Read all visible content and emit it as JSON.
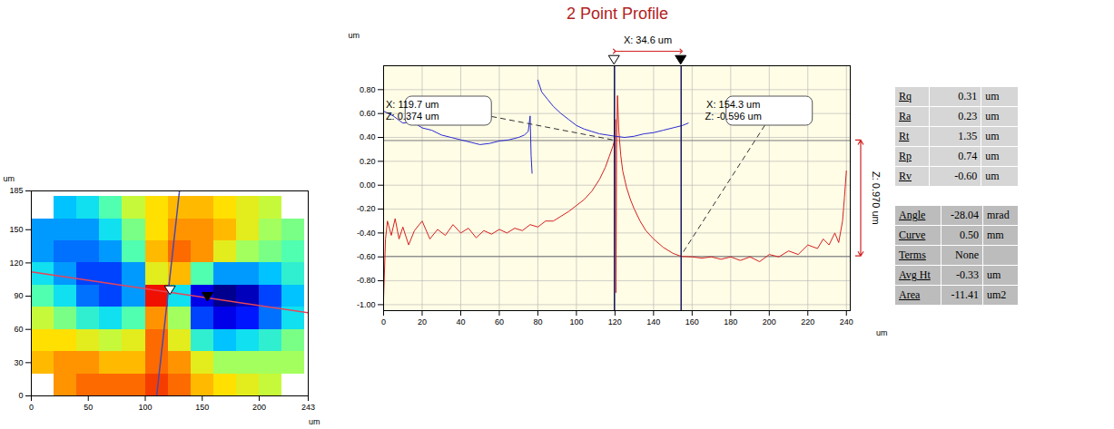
{
  "chart_data": [
    {
      "type": "heatmap",
      "x_label": "um",
      "y_label": "um",
      "xlim": [
        0,
        243
      ],
      "ylim": [
        0,
        185
      ],
      "xticks": [
        0,
        50,
        100,
        150,
        200,
        243
      ],
      "yticks": [
        0,
        30,
        60,
        90,
        120,
        150,
        185
      ],
      "grid": false,
      "color": "jet",
      "x": [
        10,
        30,
        50,
        70,
        90,
        110,
        130,
        150,
        170,
        190,
        210,
        230
      ],
      "y": [
        10,
        30,
        50,
        70,
        90,
        110,
        130,
        150,
        170
      ],
      "cells": [
        [
          null,
          0.25,
          0.3,
          0.3,
          0.3,
          0.35,
          0.3,
          0.2,
          0.15,
          0.1,
          0.05,
          null
        ],
        [
          0.2,
          0.25,
          0.25,
          0.2,
          0.2,
          0.3,
          0.25,
          0.1,
          0,
          0,
          0,
          0
        ],
        [
          0.15,
          0.15,
          0.1,
          0.05,
          0.1,
          0.3,
          0.1,
          -0.15,
          -0.25,
          -0.2,
          -0.15,
          -0.05
        ],
        [
          0.05,
          -0.05,
          -0.15,
          -0.2,
          -0.1,
          0.25,
          0,
          -0.4,
          -0.5,
          -0.45,
          -0.35,
          -0.2
        ],
        [
          -0.1,
          -0.2,
          -0.35,
          -0.4,
          -0.3,
          0.4,
          -0.2,
          -0.5,
          -0.6,
          -0.55,
          -0.4,
          -0.25
        ],
        [
          -0.2,
          -0.3,
          -0.4,
          -0.4,
          -0.3,
          0.1,
          0.2,
          -0.1,
          -0.3,
          -0.3,
          -0.25,
          -0.15
        ],
        [
          -0.3,
          -0.35,
          -0.35,
          -0.3,
          -0.1,
          0.2,
          0.3,
          0.25,
          0.1,
          0,
          -0.05,
          -0.1
        ],
        [
          -0.3,
          -0.3,
          -0.3,
          -0.2,
          -0.05,
          0.15,
          0.25,
          0.25,
          0.2,
          0.1,
          0,
          -0.05
        ],
        [
          null,
          -0.25,
          -0.2,
          -0.1,
          0.05,
          0.15,
          0.2,
          0.2,
          0.15,
          0.1,
          0.05,
          null
        ]
      ],
      "lines": [
        {
          "color": "#e8445a",
          "x": [
            0,
            243
          ],
          "y": [
            112,
            75
          ]
        },
        {
          "color": "#4a4aa8",
          "x": [
            110,
            130
          ],
          "y": [
            0,
            185
          ]
        }
      ],
      "markers": [
        {
          "x": 122,
          "y": 95,
          "color": "#ffffff",
          "marker": "triangle-down"
        },
        {
          "x": 155,
          "y": 89,
          "color": "#000000",
          "marker": "triangle-down"
        }
      ]
    },
    {
      "type": "line",
      "title": "2 Point Profile",
      "x_label": "um",
      "y_label": "um",
      "xlim": [
        0,
        242
      ],
      "ylim": [
        -1.05,
        1.0
      ],
      "xticks": [
        0,
        20,
        40,
        60,
        80,
        100,
        120,
        140,
        160,
        180,
        200,
        220,
        240
      ],
      "yticks": [
        {
          "value": 0.8,
          "label": "0.80"
        },
        {
          "value": 0.6,
          "label": "0.60"
        },
        {
          "value": 0.4,
          "label": "0.40"
        },
        {
          "value": 0.2,
          "label": "0.20"
        },
        {
          "value": 0,
          "label": "0.00"
        },
        {
          "value": -0.2,
          "label": "-0.20"
        },
        {
          "value": -0.4,
          "label": "-0.40"
        },
        {
          "value": -0.6,
          "label": "-0.60"
        },
        {
          "value": -0.8,
          "label": "-0.80"
        },
        {
          "value": -1,
          "label": "-1.00"
        }
      ],
      "grid": true,
      "series": [
        {
          "color": "#d42020",
          "x": [
            0,
            1,
            2,
            4,
            6,
            8,
            10,
            13,
            16,
            20,
            24,
            28,
            32,
            36,
            40,
            44,
            48,
            52,
            56,
            60,
            64,
            68,
            72,
            76,
            80,
            84,
            88,
            92,
            96,
            100,
            104,
            108,
            112,
            115,
            117,
            119,
            119.7,
            120.2,
            120.5,
            120.8,
            121.3,
            122,
            123,
            124,
            126,
            128,
            130,
            133,
            136,
            140,
            145,
            150,
            154.3,
            160,
            165,
            170,
            175,
            180,
            185,
            190,
            195,
            200,
            205,
            210,
            215,
            220,
            225,
            228,
            231,
            234,
            236,
            238,
            239,
            240
          ],
          "values": [
            -0.95,
            -0.45,
            -0.3,
            -0.42,
            -0.28,
            -0.45,
            -0.35,
            -0.5,
            -0.38,
            -0.3,
            -0.45,
            -0.37,
            -0.42,
            -0.33,
            -0.4,
            -0.36,
            -0.44,
            -0.38,
            -0.41,
            -0.37,
            -0.4,
            -0.36,
            -0.38,
            -0.33,
            -0.35,
            -0.3,
            -0.3,
            -0.26,
            -0.22,
            -0.17,
            -0.12,
            -0.05,
            0.05,
            0.15,
            0.24,
            0.33,
            0.374,
            0.55,
            -0.9,
            0.3,
            0.75,
            0.45,
            0.25,
            0.12,
            -0.02,
            -0.12,
            -0.2,
            -0.3,
            -0.38,
            -0.45,
            -0.52,
            -0.57,
            -0.596,
            -0.6,
            -0.61,
            -0.6,
            -0.62,
            -0.6,
            -0.63,
            -0.6,
            -0.64,
            -0.58,
            -0.6,
            -0.55,
            -0.58,
            -0.5,
            -0.53,
            -0.45,
            -0.5,
            -0.4,
            -0.48,
            -0.3,
            -0.1,
            0.12
          ]
        },
        {
          "color": "#2a2ad0",
          "x": [
            0,
            5,
            10,
            15,
            20,
            25,
            30,
            35,
            40,
            45,
            50,
            55,
            60,
            65,
            70,
            73,
            75,
            76,
            76.5,
            77,
            78,
            80,
            82,
            85,
            88,
            92,
            96,
            100,
            104,
            108,
            112,
            116,
            120,
            125,
            130,
            135,
            140,
            145,
            150,
            155,
            158
          ],
          "values": [
            0.62,
            0.58,
            0.52,
            0.53,
            0.48,
            0.46,
            0.42,
            0.4,
            0.38,
            0.36,
            0.34,
            0.35,
            0.37,
            0.38,
            0.4,
            0.42,
            0.45,
            0.58,
            0.25,
            0.1,
            null,
            0.88,
            0.78,
            0.72,
            0.66,
            0.6,
            0.55,
            0.5,
            0.47,
            0.45,
            0.43,
            0.42,
            0.41,
            0.4,
            0.41,
            0.43,
            0.44,
            0.46,
            0.48,
            0.5,
            0.52
          ]
        }
      ],
      "cursors": [
        {
          "x": 119.7,
          "z": 0.374,
          "labels": [
            "X: 119.7 um",
            "Z: 0.374 um"
          ],
          "color": "#ffffff"
        },
        {
          "x": 154.3,
          "z": -0.596,
          "labels": [
            "X: 154.3 um",
            "Z: -0.596 um"
          ],
          "color": "#000000"
        }
      ],
      "delta_x": {
        "value": 34.6,
        "label": "X: 34.6 um"
      },
      "delta_z": {
        "value": 0.97,
        "label": "Z: 0.970 um"
      }
    }
  ],
  "tables": [
    {
      "rows": [
        [
          "Rq",
          "0.31",
          "um"
        ],
        [
          "Ra",
          "0.23",
          "um"
        ],
        [
          "Rt",
          "1.35",
          "um"
        ],
        [
          "Rp",
          "0.74",
          "um"
        ],
        [
          "Rv",
          "-0.60",
          "um"
        ]
      ]
    },
    {
      "rows": [
        [
          "Angle",
          "-28.04",
          "mrad"
        ],
        [
          "Curve",
          "0.50",
          "mm"
        ],
        [
          "Terms",
          "None",
          ""
        ],
        [
          "Avg Ht",
          "-0.33",
          "um"
        ],
        [
          "Area",
          "-11.41",
          "um2"
        ]
      ]
    }
  ]
}
